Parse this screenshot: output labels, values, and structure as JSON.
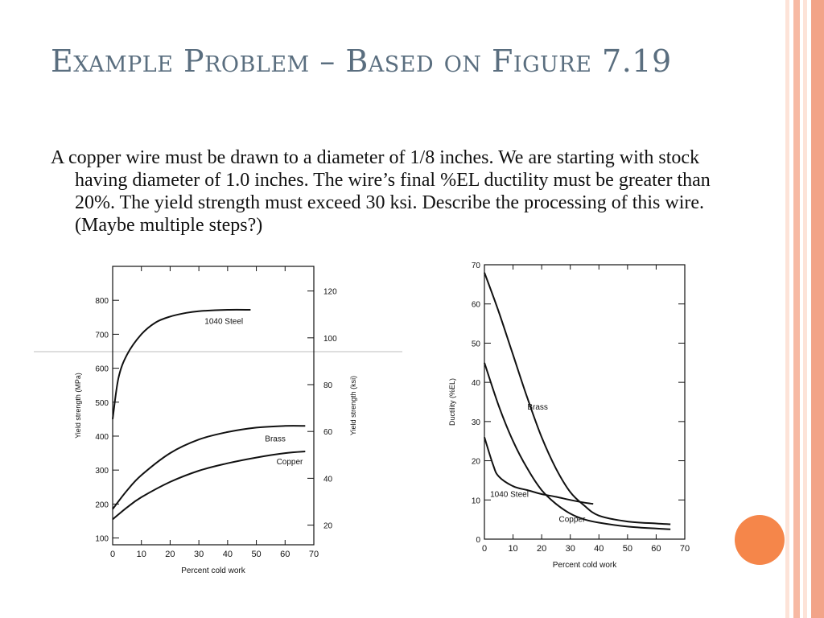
{
  "slide": {
    "title": "Example Problem – Based on Figure 7.19",
    "body": "A copper wire must be drawn to a diameter of 1/8 inches.  We are starting with stock having diameter of 1.0 inches.  The wire’s final %EL ductility must be greater than 20%.  The yield strength must exceed 30 ksi.  Describe the processing of this wire.  (Maybe multiple steps?)"
  },
  "colors": {
    "title": "#5a6e7f",
    "stripe_light": "#fde3d8",
    "stripe_mid": "#f7b9a3",
    "stripe_dark": "#f2a488",
    "accent_circle": "#f5864a"
  },
  "chart_data": [
    {
      "type": "line",
      "xlabel": "Percent cold work",
      "ylabel": "Yield strength (MPa)",
      "ylabel_right": "Yield strength (ksi)",
      "xlim": [
        0,
        70
      ],
      "ylim": [
        80,
        900
      ],
      "x_ticks": [
        0,
        10,
        20,
        30,
        40,
        50,
        60,
        70
      ],
      "y_ticks": [
        100,
        200,
        300,
        400,
        500,
        600,
        700,
        800
      ],
      "y2_ticks": [
        20,
        40,
        60,
        80,
        100,
        120
      ],
      "series": [
        {
          "name": "1040 Steel",
          "x": [
            0,
            2,
            5,
            10,
            15,
            20,
            25,
            30,
            40,
            48
          ],
          "y": [
            450,
            570,
            640,
            700,
            735,
            752,
            762,
            768,
            772,
            772
          ]
        },
        {
          "name": "Brass",
          "x": [
            0,
            5,
            10,
            20,
            30,
            40,
            50,
            60,
            67
          ],
          "y": [
            185,
            240,
            285,
            350,
            390,
            412,
            425,
            430,
            430
          ]
        },
        {
          "name": "Copper",
          "x": [
            0,
            5,
            10,
            20,
            30,
            40,
            50,
            60,
            67
          ],
          "y": [
            155,
            190,
            220,
            265,
            298,
            320,
            337,
            350,
            355
          ]
        }
      ]
    },
    {
      "type": "line",
      "xlabel": "Percent cold work",
      "ylabel": "Ductility (%EL)",
      "xlim": [
        0,
        70
      ],
      "ylim": [
        0,
        70
      ],
      "x_ticks": [
        0,
        10,
        20,
        30,
        40,
        50,
        60,
        70
      ],
      "y_ticks": [
        0,
        10,
        20,
        30,
        40,
        50,
        60,
        70
      ],
      "series": [
        {
          "name": "Brass",
          "x": [
            0,
            5,
            10,
            15,
            20,
            25,
            30,
            35,
            40,
            50,
            60,
            65
          ],
          "y": [
            68,
            58,
            47,
            36,
            26,
            18,
            12,
            8.5,
            6,
            4.5,
            4,
            3.8
          ]
        },
        {
          "name": "Copper",
          "x": [
            0,
            5,
            10,
            15,
            20,
            25,
            30,
            35,
            40,
            50,
            60,
            65
          ],
          "y": [
            45,
            34,
            25,
            18,
            12.5,
            9,
            6.5,
            5,
            4.2,
            3.2,
            2.7,
            2.5
          ]
        },
        {
          "name": "1040 Steel",
          "x": [
            0,
            3,
            5,
            10,
            15,
            20,
            25,
            30,
            35,
            38
          ],
          "y": [
            26,
            19,
            16,
            13.5,
            12.5,
            11.5,
            10.8,
            10,
            9.3,
            9
          ]
        }
      ]
    }
  ]
}
